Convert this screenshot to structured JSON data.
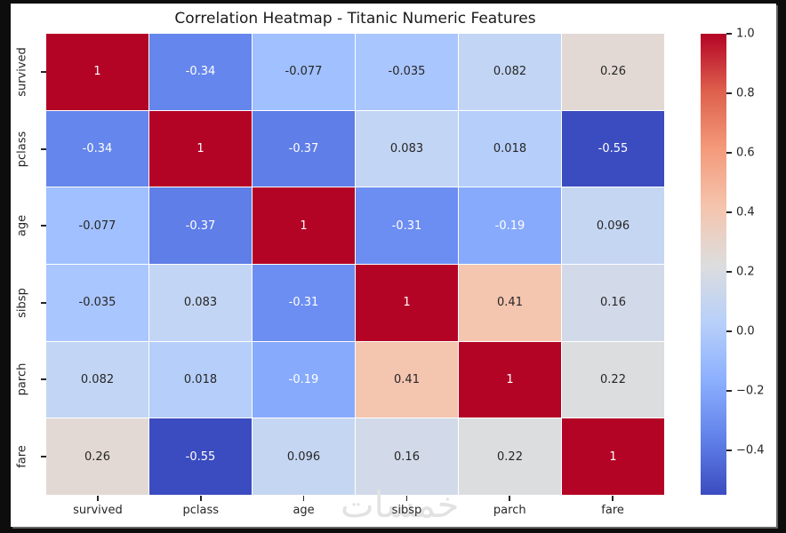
{
  "title": "Correlation Heatmap - Titanic Numeric Features",
  "watermark_text": "خمسات",
  "colors": {
    "canvas_bg": "#0d0d0d",
    "panel_bg": "#ffffff",
    "text_dark": "#262626",
    "text_light": "#ffffff",
    "grid_line": "#ffffff",
    "watermark": "#e2e2e2",
    "diagonal_red": "#b40426",
    "min_blue": "#3b4cc0"
  },
  "chart_data": {
    "type": "heatmap",
    "title": "Correlation Heatmap - Titanic Numeric Features",
    "colormap": "coolwarm",
    "vmin": -0.55,
    "vmax": 1.0,
    "categories": [
      "survived",
      "pclass",
      "age",
      "sibsp",
      "parch",
      "fare"
    ],
    "matrix": [
      [
        1,
        -0.34,
        -0.077,
        -0.035,
        0.082,
        0.26
      ],
      [
        -0.34,
        1,
        -0.37,
        0.083,
        0.018,
        -0.55
      ],
      [
        -0.077,
        -0.37,
        1,
        -0.31,
        -0.19,
        0.096
      ],
      [
        -0.035,
        0.083,
        -0.31,
        1,
        0.41,
        0.16
      ],
      [
        0.082,
        0.018,
        -0.19,
        0.41,
        1,
        0.22
      ],
      [
        0.26,
        -0.55,
        0.096,
        0.16,
        0.22,
        1
      ]
    ],
    "cell_labels": [
      [
        "1",
        "-0.34",
        "-0.077",
        "-0.035",
        "0.082",
        "0.26"
      ],
      [
        "-0.34",
        "1",
        "-0.37",
        "0.083",
        "0.018",
        "-0.55"
      ],
      [
        "-0.077",
        "-0.37",
        "1",
        "-0.31",
        "-0.19",
        "0.096"
      ],
      [
        "-0.035",
        "0.083",
        "-0.31",
        "1",
        "0.41",
        "0.16"
      ],
      [
        "0.082",
        "0.018",
        "-0.19",
        "0.41",
        "1",
        "0.22"
      ],
      [
        "0.26",
        "-0.55",
        "0.096",
        "0.16",
        "0.22",
        "1"
      ]
    ],
    "cell_colors": [
      [
        "#b40426",
        "#6586ec",
        "#a0c0ff",
        "#aac6fe",
        "#c2d5f4",
        "#e3d9d4"
      ],
      [
        "#6586ec",
        "#b40426",
        "#5f7ee7",
        "#c3d5f4",
        "#b5cefa",
        "#3b4cc0"
      ],
      [
        "#a0c0ff",
        "#5f7ee7",
        "#b40426",
        "#6c8df1",
        "#87aafc",
        "#c5d6f2"
      ],
      [
        "#aac6fe",
        "#c3d5f4",
        "#6c8df1",
        "#b40426",
        "#f4c5af",
        "#d2dae9"
      ],
      [
        "#c2d5f4",
        "#b5cefa",
        "#87aafc",
        "#f4c5af",
        "#b40426",
        "#dcddde"
      ],
      [
        "#e3d9d4",
        "#3b4cc0",
        "#c5d6f2",
        "#d2dae9",
        "#dcddde",
        "#b40426"
      ]
    ],
    "cell_text_white": [
      [
        true,
        true,
        false,
        false,
        false,
        false
      ],
      [
        true,
        true,
        true,
        false,
        false,
        true
      ],
      [
        false,
        true,
        true,
        true,
        true,
        false
      ],
      [
        false,
        false,
        true,
        true,
        false,
        false
      ],
      [
        false,
        false,
        true,
        false,
        true,
        false
      ],
      [
        false,
        true,
        false,
        false,
        false,
        true
      ]
    ],
    "colorbar": {
      "tick_labels": [
        "1.0",
        "0.8",
        "0.6",
        "0.4",
        "0.2",
        "0.0",
        "−0.2",
        "−0.4"
      ],
      "tick_values": [
        1.0,
        0.8,
        0.6,
        0.4,
        0.2,
        0.0,
        -0.2,
        -0.4
      ],
      "gradient_stops": [
        "#b40426",
        "#de604d",
        "#f49a7b",
        "#f5c4ad",
        "#dddddd",
        "#b8d0f9",
        "#8db0fe",
        "#6282ea",
        "#3b4cc0"
      ]
    },
    "legend_position": "right-colorbar",
    "grid": false
  }
}
